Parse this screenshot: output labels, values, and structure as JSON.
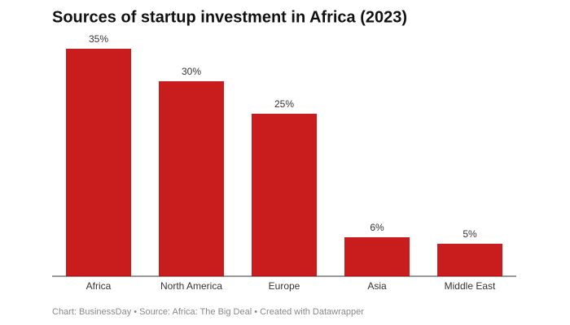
{
  "chart_data": {
    "type": "bar",
    "title": "Sources of startup investment in Africa (2023)",
    "categories": [
      "Africa",
      "North America",
      "Europe",
      "Asia",
      "Middle East"
    ],
    "values": [
      35,
      30,
      25,
      6,
      5
    ],
    "value_labels": [
      "35%",
      "30%",
      "25%",
      "6%",
      "5%"
    ],
    "color": "#c91d1d",
    "ylim": [
      0,
      35
    ],
    "footer": "Chart: BusinessDay • Source: Africa: The Big Deal • Created with Datawrapper"
  }
}
